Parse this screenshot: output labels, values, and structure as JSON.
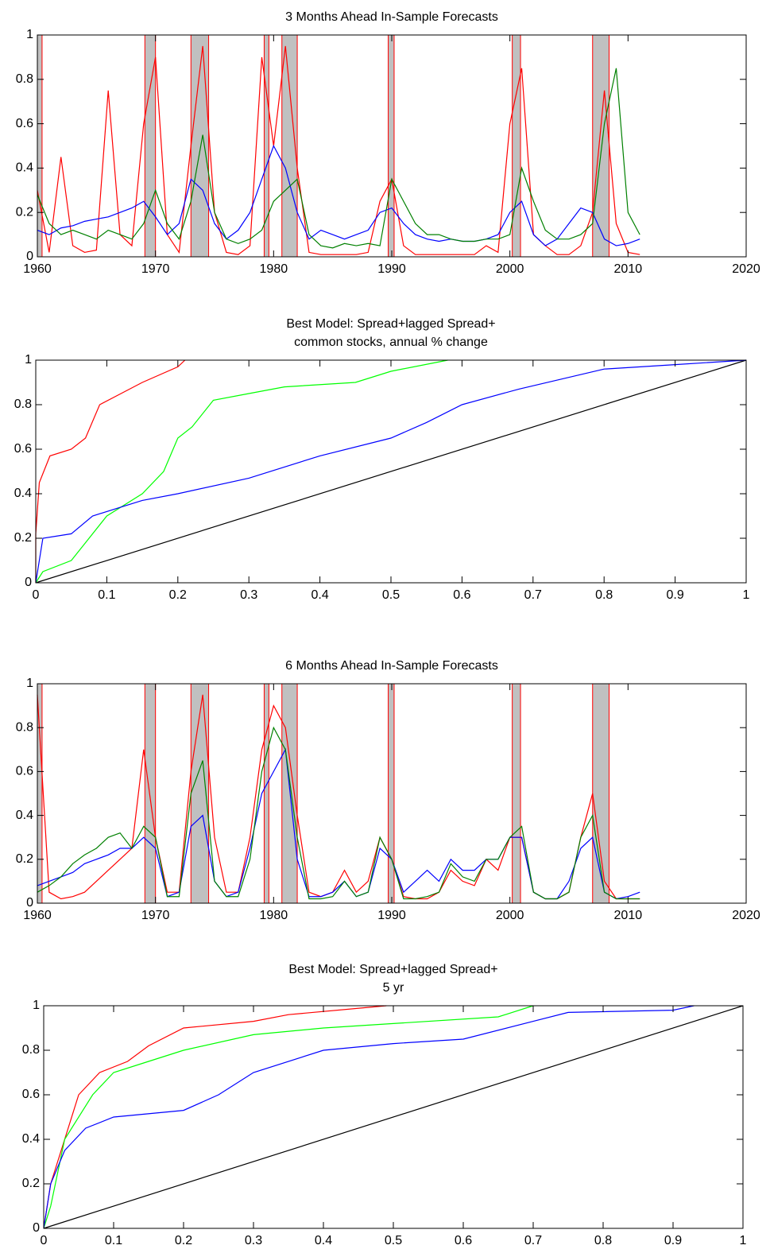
{
  "chart_data": [
    {
      "type": "line",
      "title": [
        "3 Months Ahead In-Sample Forecasts"
      ],
      "x": [
        1960,
        1961,
        1962,
        1963,
        1964,
        1965,
        1966,
        1967,
        1968,
        1969,
        1970,
        1971,
        1972,
        1973,
        1974,
        1975,
        1976,
        1977,
        1978,
        1979,
        1980,
        1981,
        1982,
        1983,
        1984,
        1985,
        1986,
        1987,
        1988,
        1989,
        1990,
        1991,
        1992,
        1993,
        1994,
        1995,
        1996,
        1997,
        1998,
        1999,
        2000,
        2001,
        2002,
        2003,
        2004,
        2005,
        2006,
        2007,
        2008,
        2009,
        2010,
        2011
      ],
      "series": [
        {
          "color": "#ff0000",
          "values": [
            0.3,
            0.02,
            0.45,
            0.05,
            0.02,
            0.03,
            0.75,
            0.1,
            0.05,
            0.6,
            0.9,
            0.1,
            0.02,
            0.5,
            0.95,
            0.2,
            0.02,
            0.01,
            0.05,
            0.9,
            0.5,
            0.95,
            0.4,
            0.02,
            0.01,
            0.01,
            0.01,
            0.01,
            0.02,
            0.25,
            0.35,
            0.05,
            0.01,
            0.01,
            0.01,
            0.01,
            0.01,
            0.01,
            0.05,
            0.02,
            0.6,
            0.85,
            0.1,
            0.05,
            0.01,
            0.01,
            0.05,
            0.2,
            0.75,
            0.15,
            0.02,
            0.01
          ]
        },
        {
          "color": "#0000ff",
          "values": [
            0.12,
            0.1,
            0.13,
            0.14,
            0.16,
            0.17,
            0.18,
            0.2,
            0.22,
            0.25,
            0.18,
            0.1,
            0.15,
            0.35,
            0.3,
            0.15,
            0.08,
            0.12,
            0.2,
            0.35,
            0.5,
            0.4,
            0.2,
            0.08,
            0.12,
            0.1,
            0.08,
            0.1,
            0.12,
            0.2,
            0.22,
            0.15,
            0.1,
            0.08,
            0.07,
            0.08,
            0.07,
            0.07,
            0.08,
            0.1,
            0.2,
            0.25,
            0.1,
            0.05,
            0.08,
            0.15,
            0.22,
            0.2,
            0.08,
            0.05,
            0.06,
            0.08
          ]
        },
        {
          "color": "#008000",
          "values": [
            0.28,
            0.15,
            0.1,
            0.12,
            0.1,
            0.08,
            0.12,
            0.1,
            0.08,
            0.15,
            0.3,
            0.15,
            0.08,
            0.25,
            0.55,
            0.2,
            0.08,
            0.06,
            0.08,
            0.12,
            0.25,
            0.3,
            0.35,
            0.1,
            0.05,
            0.04,
            0.06,
            0.05,
            0.06,
            0.05,
            0.35,
            0.25,
            0.15,
            0.1,
            0.1,
            0.08,
            0.07,
            0.07,
            0.08,
            0.08,
            0.1,
            0.4,
            0.25,
            0.12,
            0.08,
            0.08,
            0.1,
            0.15,
            0.6,
            0.85,
            0.2,
            0.1
          ]
        }
      ],
      "shaded_regions": [
        [
          1960,
          1960.4
        ],
        [
          1969.1,
          1970
        ],
        [
          1973,
          1974.5
        ],
        [
          1979.2,
          1979.6
        ],
        [
          1980.7,
          1982
        ],
        [
          1989.7,
          1990.2
        ],
        [
          2000.2,
          2000.9
        ],
        [
          2007,
          2008.4
        ]
      ],
      "shade_color": "#c0c0c0",
      "shade_edge_color": "#ff0000",
      "xlim": [
        1960,
        2020
      ],
      "xticks": [
        1960,
        1970,
        1980,
        1990,
        2000,
        2010,
        2020
      ],
      "ylim": [
        0,
        1
      ],
      "yticks": [
        0,
        0.2,
        0.4,
        0.6,
        0.8,
        1
      ]
    },
    {
      "type": "line",
      "title": [
        "Best Model: Spread+lagged Spread+",
        "common stocks, annual % change"
      ],
      "series": [
        {
          "color": "#000000",
          "x": [
            0,
            1
          ],
          "values": [
            0,
            1
          ]
        },
        {
          "color": "#ff0000",
          "x": [
            0,
            0,
            0.005,
            0.02,
            0.05,
            0.07,
            0.09,
            0.12,
            0.15,
            0.2,
            0.21
          ],
          "values": [
            0,
            0.22,
            0.45,
            0.57,
            0.6,
            0.65,
            0.8,
            0.85,
            0.9,
            0.97,
            1
          ]
        },
        {
          "color": "#00ff00",
          "x": [
            0,
            0.01,
            0.05,
            0.07,
            0.1,
            0.15,
            0.18,
            0.2,
            0.22,
            0.25,
            0.3,
            0.35,
            0.45,
            0.5,
            0.58
          ],
          "values": [
            0,
            0.05,
            0.1,
            0.18,
            0.3,
            0.4,
            0.5,
            0.65,
            0.7,
            0.82,
            0.85,
            0.88,
            0.9,
            0.95,
            1
          ]
        },
        {
          "color": "#0000ff",
          "x": [
            0,
            0.01,
            0.05,
            0.08,
            0.15,
            0.2,
            0.3,
            0.4,
            0.5,
            0.55,
            0.6,
            0.68,
            0.8,
            0.9,
            1
          ],
          "values": [
            0,
            0.2,
            0.22,
            0.3,
            0.37,
            0.4,
            0.47,
            0.57,
            0.65,
            0.72,
            0.8,
            0.87,
            0.96,
            0.98,
            1
          ]
        }
      ],
      "xlim": [
        0,
        1
      ],
      "xticks": [
        0,
        0.1,
        0.2,
        0.3,
        0.4,
        0.5,
        0.6,
        0.7,
        0.8,
        0.9,
        1
      ],
      "ylim": [
        0,
        1
      ],
      "yticks": [
        0,
        0.2,
        0.4,
        0.6,
        0.8,
        1
      ]
    },
    {
      "type": "line",
      "title": [
        "6 Months Ahead In-Sample Forecasts"
      ],
      "x": [
        1960,
        1961,
        1962,
        1963,
        1964,
        1965,
        1966,
        1967,
        1968,
        1969,
        1970,
        1971,
        1972,
        1973,
        1974,
        1975,
        1976,
        1977,
        1978,
        1979,
        1980,
        1981,
        1982,
        1983,
        1984,
        1985,
        1986,
        1987,
        1988,
        1989,
        1990,
        1991,
        1992,
        1993,
        1994,
        1995,
        1996,
        1997,
        1998,
        1999,
        2000,
        2001,
        2002,
        2003,
        2004,
        2005,
        2006,
        2007,
        2008,
        2009,
        2010,
        2011
      ],
      "series": [
        {
          "color": "#ff0000",
          "values": [
            0.95,
            0.05,
            0.02,
            0.03,
            0.05,
            0.1,
            0.15,
            0.2,
            0.25,
            0.7,
            0.3,
            0.05,
            0.05,
            0.6,
            0.95,
            0.3,
            0.05,
            0.05,
            0.3,
            0.7,
            0.9,
            0.8,
            0.4,
            0.05,
            0.03,
            0.05,
            0.15,
            0.05,
            0.1,
            0.3,
            0.2,
            0.03,
            0.02,
            0.02,
            0.05,
            0.15,
            0.1,
            0.08,
            0.2,
            0.15,
            0.3,
            0.3,
            0.05,
            0.02,
            0.02,
            0.05,
            0.3,
            0.5,
            0.1,
            0.02,
            0.02,
            0.02
          ]
        },
        {
          "color": "#0000ff",
          "values": [
            0.08,
            0.1,
            0.12,
            0.14,
            0.18,
            0.2,
            0.22,
            0.25,
            0.25,
            0.3,
            0.25,
            0.03,
            0.05,
            0.35,
            0.4,
            0.1,
            0.03,
            0.05,
            0.25,
            0.5,
            0.6,
            0.7,
            0.2,
            0.03,
            0.03,
            0.05,
            0.1,
            0.03,
            0.05,
            0.25,
            0.2,
            0.05,
            0.1,
            0.15,
            0.1,
            0.2,
            0.15,
            0.15,
            0.2,
            0.2,
            0.3,
            0.3,
            0.05,
            0.02,
            0.02,
            0.1,
            0.25,
            0.3,
            0.05,
            0.02,
            0.03,
            0.05
          ]
        },
        {
          "color": "#008000",
          "values": [
            0.05,
            0.08,
            0.12,
            0.18,
            0.22,
            0.25,
            0.3,
            0.32,
            0.25,
            0.35,
            0.3,
            0.03,
            0.03,
            0.5,
            0.65,
            0.1,
            0.03,
            0.03,
            0.2,
            0.6,
            0.8,
            0.7,
            0.3,
            0.02,
            0.02,
            0.03,
            0.1,
            0.03,
            0.05,
            0.3,
            0.2,
            0.02,
            0.02,
            0.03,
            0.05,
            0.18,
            0.12,
            0.1,
            0.2,
            0.2,
            0.3,
            0.35,
            0.05,
            0.02,
            0.02,
            0.05,
            0.3,
            0.4,
            0.05,
            0.02,
            0.02,
            0.02
          ]
        }
      ],
      "shaded_regions": [
        [
          1960,
          1960.4
        ],
        [
          1969.1,
          1970
        ],
        [
          1973,
          1974.5
        ],
        [
          1979.2,
          1979.6
        ],
        [
          1980.7,
          1982
        ],
        [
          1989.7,
          1990.2
        ],
        [
          2000.2,
          2000.9
        ],
        [
          2007,
          2008.4
        ]
      ],
      "shade_color": "#c0c0c0",
      "shade_edge_color": "#ff0000",
      "xlim": [
        1960,
        2020
      ],
      "xticks": [
        1960,
        1970,
        1980,
        1990,
        2000,
        2010,
        2020
      ],
      "ylim": [
        0,
        1
      ],
      "yticks": [
        0,
        0.2,
        0.4,
        0.6,
        0.8,
        1
      ]
    },
    {
      "type": "line",
      "title": [
        "Best Model: Spread+lagged Spread+",
        "5 yr"
      ],
      "series": [
        {
          "color": "#000000",
          "x": [
            0,
            1
          ],
          "values": [
            0,
            1
          ]
        },
        {
          "color": "#ff0000",
          "x": [
            0,
            0.01,
            0.03,
            0.05,
            0.08,
            0.12,
            0.15,
            0.2,
            0.3,
            0.35,
            0.49
          ],
          "values": [
            0,
            0.2,
            0.4,
            0.6,
            0.7,
            0.75,
            0.82,
            0.9,
            0.93,
            0.96,
            1
          ]
        },
        {
          "color": "#00ff00",
          "x": [
            0,
            0.01,
            0.03,
            0.07,
            0.1,
            0.15,
            0.2,
            0.3,
            0.4,
            0.5,
            0.65,
            0.7
          ],
          "values": [
            0,
            0.1,
            0.4,
            0.6,
            0.7,
            0.75,
            0.8,
            0.87,
            0.9,
            0.92,
            0.95,
            1
          ]
        },
        {
          "color": "#0000ff",
          "x": [
            0,
            0.01,
            0.03,
            0.06,
            0.1,
            0.2,
            0.25,
            0.3,
            0.4,
            0.5,
            0.6,
            0.7,
            0.75,
            0.9,
            0.93
          ],
          "values": [
            0,
            0.2,
            0.35,
            0.45,
            0.5,
            0.53,
            0.6,
            0.7,
            0.8,
            0.83,
            0.85,
            0.93,
            0.97,
            0.98,
            1
          ]
        }
      ],
      "xlim": [
        0,
        1
      ],
      "xticks": [
        0,
        0.1,
        0.2,
        0.3,
        0.4,
        0.5,
        0.6,
        0.7,
        0.8,
        0.9,
        1
      ],
      "ylim": [
        0,
        1
      ],
      "yticks": [
        0,
        0.2,
        0.4,
        0.6,
        0.8,
        1
      ]
    }
  ]
}
